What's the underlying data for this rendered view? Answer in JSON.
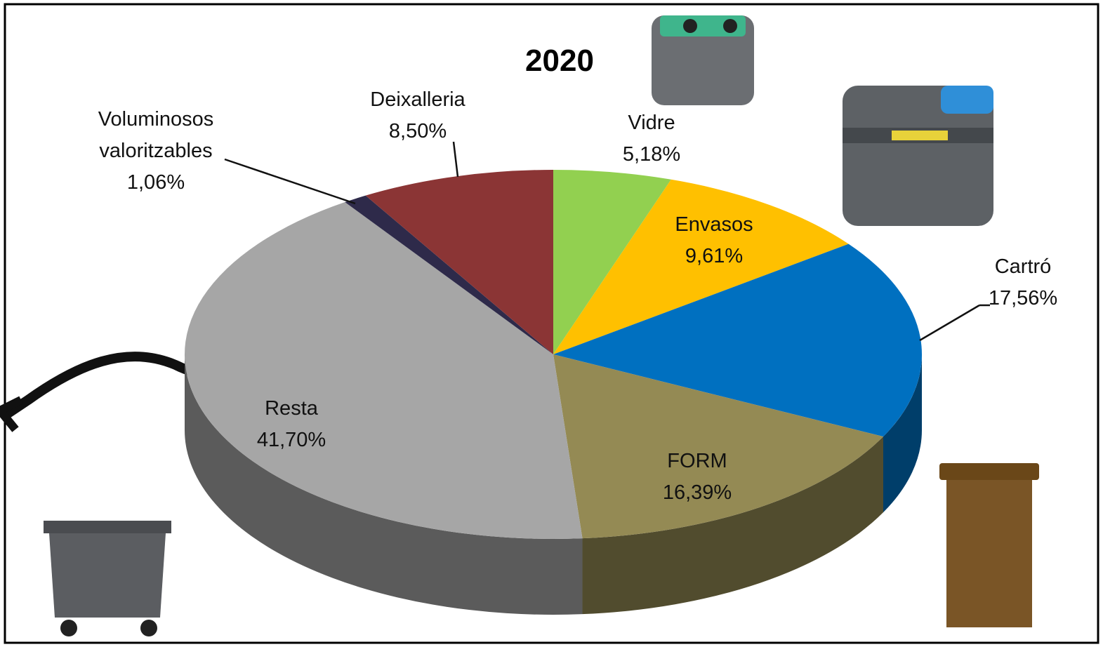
{
  "chart_data": {
    "type": "pie",
    "title": "2020",
    "categories": [
      "Vidre",
      "Envasos",
      "Cartró",
      "FORM",
      "Resta",
      "Voluminosos valoritzables",
      "Deixalleria"
    ],
    "values": [
      5.18,
      9.61,
      17.56,
      16.39,
      41.7,
      1.06,
      8.5
    ],
    "value_labels": [
      "5,18%",
      "9,61%",
      "17,56%",
      "16,39%",
      "41,70%",
      "1,06%",
      "8,50%"
    ],
    "colors": [
      "#92d050",
      "#ffc000",
      "#0070c0",
      "#948a54",
      "#a6a6a6",
      "#2e2a4a",
      "#8b3535"
    ]
  }
}
